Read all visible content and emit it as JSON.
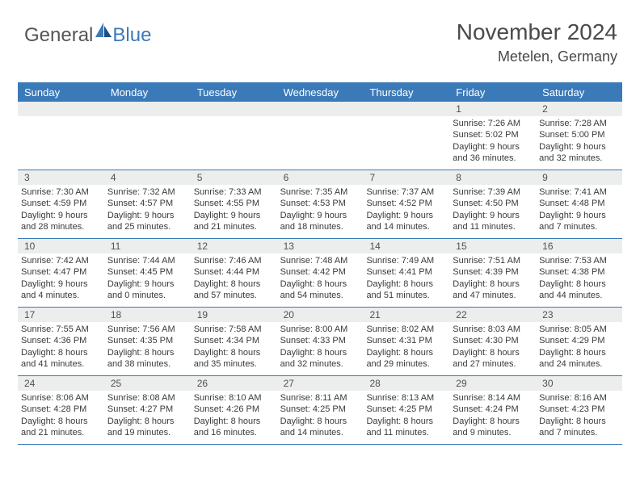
{
  "brand": {
    "part1": "General",
    "part2": "Blue"
  },
  "title": "November 2024",
  "location": "Metelen, Germany",
  "colors": {
    "header_bg": "#3b7ab8",
    "header_text": "#ffffff",
    "daynum_bg": "#eceded",
    "border": "#3b7ab8",
    "text": "#3a3a3a"
  },
  "day_labels": [
    "Sunday",
    "Monday",
    "Tuesday",
    "Wednesday",
    "Thursday",
    "Friday",
    "Saturday"
  ],
  "weeks": [
    [
      {
        "n": "",
        "empty": true
      },
      {
        "n": "",
        "empty": true
      },
      {
        "n": "",
        "empty": true
      },
      {
        "n": "",
        "empty": true
      },
      {
        "n": "",
        "empty": true
      },
      {
        "n": "1",
        "sr": "7:26 AM",
        "ss": "5:02 PM",
        "dl": "9 hours and 36 minutes."
      },
      {
        "n": "2",
        "sr": "7:28 AM",
        "ss": "5:00 PM",
        "dl": "9 hours and 32 minutes."
      }
    ],
    [
      {
        "n": "3",
        "sr": "7:30 AM",
        "ss": "4:59 PM",
        "dl": "9 hours and 28 minutes."
      },
      {
        "n": "4",
        "sr": "7:32 AM",
        "ss": "4:57 PM",
        "dl": "9 hours and 25 minutes."
      },
      {
        "n": "5",
        "sr": "7:33 AM",
        "ss": "4:55 PM",
        "dl": "9 hours and 21 minutes."
      },
      {
        "n": "6",
        "sr": "7:35 AM",
        "ss": "4:53 PM",
        "dl": "9 hours and 18 minutes."
      },
      {
        "n": "7",
        "sr": "7:37 AM",
        "ss": "4:52 PM",
        "dl": "9 hours and 14 minutes."
      },
      {
        "n": "8",
        "sr": "7:39 AM",
        "ss": "4:50 PM",
        "dl": "9 hours and 11 minutes."
      },
      {
        "n": "9",
        "sr": "7:41 AM",
        "ss": "4:48 PM",
        "dl": "9 hours and 7 minutes."
      }
    ],
    [
      {
        "n": "10",
        "sr": "7:42 AM",
        "ss": "4:47 PM",
        "dl": "9 hours and 4 minutes."
      },
      {
        "n": "11",
        "sr": "7:44 AM",
        "ss": "4:45 PM",
        "dl": "9 hours and 0 minutes."
      },
      {
        "n": "12",
        "sr": "7:46 AM",
        "ss": "4:44 PM",
        "dl": "8 hours and 57 minutes."
      },
      {
        "n": "13",
        "sr": "7:48 AM",
        "ss": "4:42 PM",
        "dl": "8 hours and 54 minutes."
      },
      {
        "n": "14",
        "sr": "7:49 AM",
        "ss": "4:41 PM",
        "dl": "8 hours and 51 minutes."
      },
      {
        "n": "15",
        "sr": "7:51 AM",
        "ss": "4:39 PM",
        "dl": "8 hours and 47 minutes."
      },
      {
        "n": "16",
        "sr": "7:53 AM",
        "ss": "4:38 PM",
        "dl": "8 hours and 44 minutes."
      }
    ],
    [
      {
        "n": "17",
        "sr": "7:55 AM",
        "ss": "4:36 PM",
        "dl": "8 hours and 41 minutes."
      },
      {
        "n": "18",
        "sr": "7:56 AM",
        "ss": "4:35 PM",
        "dl": "8 hours and 38 minutes."
      },
      {
        "n": "19",
        "sr": "7:58 AM",
        "ss": "4:34 PM",
        "dl": "8 hours and 35 minutes."
      },
      {
        "n": "20",
        "sr": "8:00 AM",
        "ss": "4:33 PM",
        "dl": "8 hours and 32 minutes."
      },
      {
        "n": "21",
        "sr": "8:02 AM",
        "ss": "4:31 PM",
        "dl": "8 hours and 29 minutes."
      },
      {
        "n": "22",
        "sr": "8:03 AM",
        "ss": "4:30 PM",
        "dl": "8 hours and 27 minutes."
      },
      {
        "n": "23",
        "sr": "8:05 AM",
        "ss": "4:29 PM",
        "dl": "8 hours and 24 minutes."
      }
    ],
    [
      {
        "n": "24",
        "sr": "8:06 AM",
        "ss": "4:28 PM",
        "dl": "8 hours and 21 minutes."
      },
      {
        "n": "25",
        "sr": "8:08 AM",
        "ss": "4:27 PM",
        "dl": "8 hours and 19 minutes."
      },
      {
        "n": "26",
        "sr": "8:10 AM",
        "ss": "4:26 PM",
        "dl": "8 hours and 16 minutes."
      },
      {
        "n": "27",
        "sr": "8:11 AM",
        "ss": "4:25 PM",
        "dl": "8 hours and 14 minutes."
      },
      {
        "n": "28",
        "sr": "8:13 AM",
        "ss": "4:25 PM",
        "dl": "8 hours and 11 minutes."
      },
      {
        "n": "29",
        "sr": "8:14 AM",
        "ss": "4:24 PM",
        "dl": "8 hours and 9 minutes."
      },
      {
        "n": "30",
        "sr": "8:16 AM",
        "ss": "4:23 PM",
        "dl": "8 hours and 7 minutes."
      }
    ]
  ],
  "labels": {
    "sunrise": "Sunrise: ",
    "sunset": "Sunset: ",
    "daylight": "Daylight: "
  }
}
